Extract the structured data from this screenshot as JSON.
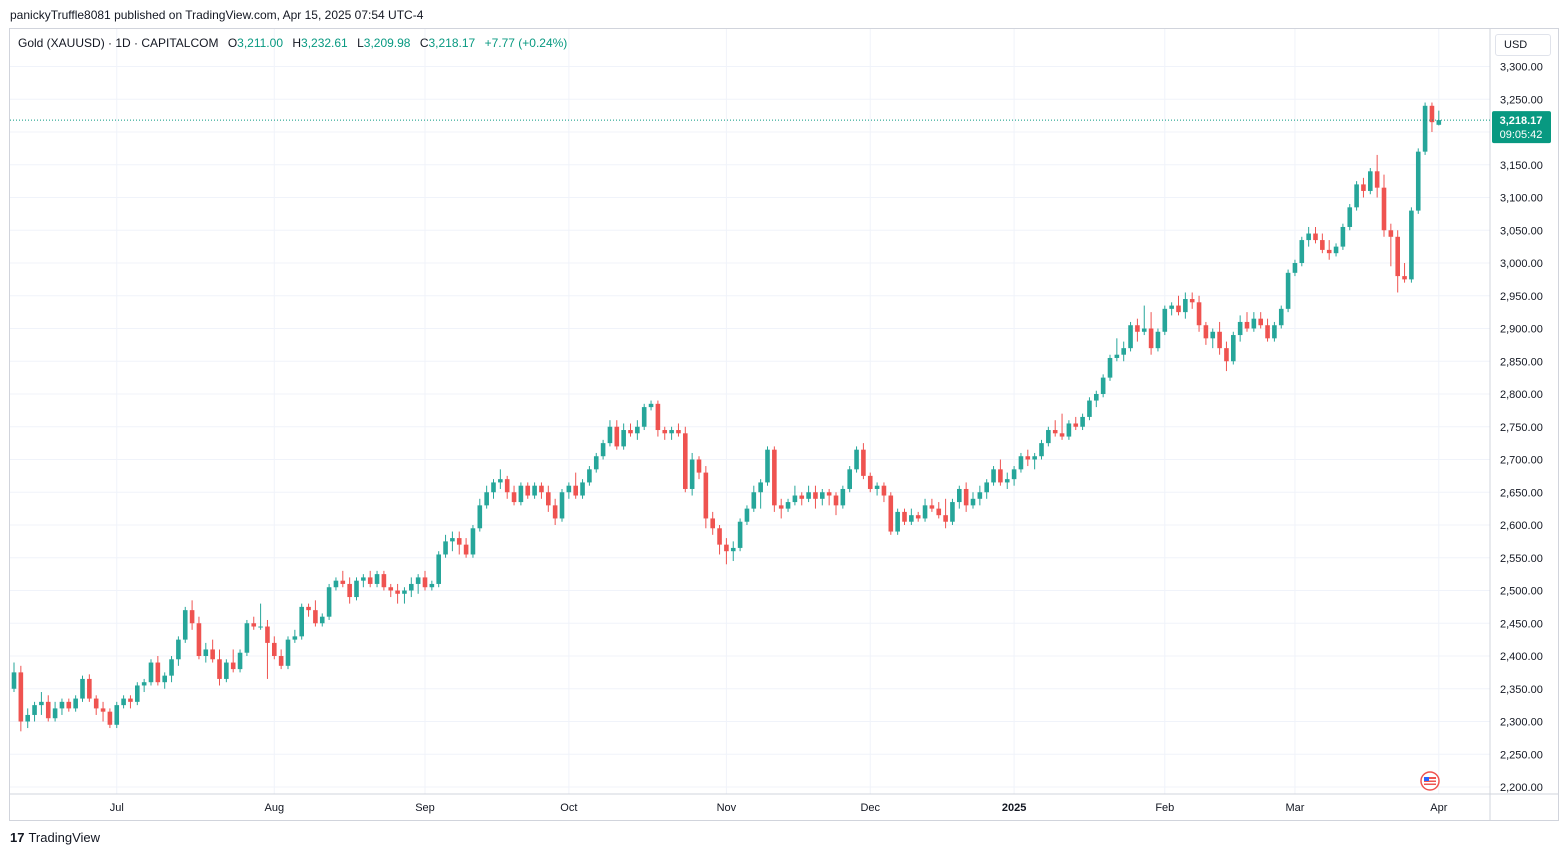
{
  "header": {
    "publisher_line": "panickyTruffle8081 published on TradingView.com, Apr 15, 2025 07:54 UTC-4"
  },
  "legend": {
    "symbol": "Gold (XAUUSD) · 1D · CAPITALCOM",
    "open_label": "O",
    "open_value": "3,211.00",
    "high_label": "H",
    "high_value": "3,232.61",
    "low_label": "L",
    "low_value": "3,209.98",
    "close_label": "C",
    "close_value": "3,218.17",
    "change": "+7.77 (+0.24%)"
  },
  "currency": "USD",
  "last_price": {
    "label": "3,218.17",
    "countdown": "09:05:42"
  },
  "footer": {
    "brand": "TradingView",
    "brand_mark": "17"
  },
  "colors": {
    "up": "#26a69a",
    "down": "#ef5350",
    "price_line": "#089981",
    "grid": "#f0f3fa",
    "axis_text": "#131722"
  },
  "chart_data": {
    "type": "candlestick",
    "title": "Gold (XAUUSD) · 1D · CAPITALCOM",
    "y_ticks": [
      "2,200.00",
      "2,250.00",
      "2,300.00",
      "2,350.00",
      "2,400.00",
      "2,450.00",
      "2,500.00",
      "2,550.00",
      "2,600.00",
      "2,650.00",
      "2,700.00",
      "2,750.00",
      "2,800.00",
      "2,850.00",
      "2,900.00",
      "2,950.00",
      "3,000.00",
      "3,050.00",
      "3,100.00",
      "3,150.00",
      "3,200.00",
      "3,250.00",
      "3,300.00"
    ],
    "ylim": [
      2190,
      3320
    ],
    "x_ticks": [
      {
        "label": "Jul",
        "bar": 15
      },
      {
        "label": "Aug",
        "bar": 38
      },
      {
        "label": "Sep",
        "bar": 60
      },
      {
        "label": "Oct",
        "bar": 81
      },
      {
        "label": "Nov",
        "bar": 104
      },
      {
        "label": "Dec",
        "bar": 125
      },
      {
        "label": "2025",
        "bar": 146,
        "bold": true
      },
      {
        "label": "Feb",
        "bar": 168
      },
      {
        "label": "Mar",
        "bar": 187
      },
      {
        "label": "Apr",
        "bar": 208
      }
    ],
    "candles": [
      [
        2350,
        2390,
        2345,
        2375
      ],
      [
        2375,
        2385,
        2285,
        2300
      ],
      [
        2300,
        2320,
        2290,
        2310
      ],
      [
        2310,
        2330,
        2300,
        2325
      ],
      [
        2325,
        2345,
        2310,
        2330
      ],
      [
        2330,
        2340,
        2300,
        2305
      ],
      [
        2305,
        2330,
        2300,
        2320
      ],
      [
        2320,
        2335,
        2310,
        2330
      ],
      [
        2330,
        2335,
        2315,
        2320
      ],
      [
        2320,
        2340,
        2315,
        2335
      ],
      [
        2335,
        2370,
        2330,
        2365
      ],
      [
        2365,
        2372,
        2330,
        2335
      ],
      [
        2335,
        2340,
        2310,
        2320
      ],
      [
        2320,
        2330,
        2300,
        2315
      ],
      [
        2315,
        2320,
        2290,
        2295
      ],
      [
        2295,
        2330,
        2290,
        2325
      ],
      [
        2325,
        2340,
        2320,
        2335
      ],
      [
        2335,
        2340,
        2320,
        2330
      ],
      [
        2330,
        2360,
        2325,
        2355
      ],
      [
        2355,
        2365,
        2345,
        2360
      ],
      [
        2360,
        2395,
        2355,
        2390
      ],
      [
        2390,
        2400,
        2355,
        2360
      ],
      [
        2360,
        2375,
        2350,
        2370
      ],
      [
        2370,
        2400,
        2360,
        2395
      ],
      [
        2395,
        2430,
        2385,
        2425
      ],
      [
        2425,
        2475,
        2420,
        2470
      ],
      [
        2470,
        2485,
        2440,
        2450
      ],
      [
        2450,
        2460,
        2395,
        2400
      ],
      [
        2400,
        2420,
        2390,
        2410
      ],
      [
        2410,
        2425,
        2390,
        2395
      ],
      [
        2395,
        2410,
        2355,
        2365
      ],
      [
        2365,
        2395,
        2360,
        2390
      ],
      [
        2390,
        2410,
        2375,
        2380
      ],
      [
        2380,
        2410,
        2375,
        2405
      ],
      [
        2405,
        2455,
        2400,
        2450
      ],
      [
        2450,
        2460,
        2440,
        2445
      ],
      [
        2445,
        2480,
        2440,
        2445
      ],
      [
        2445,
        2455,
        2365,
        2420
      ],
      [
        2420,
        2430,
        2395,
        2400
      ],
      [
        2400,
        2410,
        2380,
        2385
      ],
      [
        2385,
        2430,
        2380,
        2425
      ],
      [
        2425,
        2440,
        2420,
        2430
      ],
      [
        2430,
        2480,
        2425,
        2475
      ],
      [
        2475,
        2480,
        2460,
        2470
      ],
      [
        2470,
        2485,
        2445,
        2450
      ],
      [
        2450,
        2465,
        2445,
        2460
      ],
      [
        2460,
        2510,
        2455,
        2505
      ],
      [
        2505,
        2520,
        2500,
        2515
      ],
      [
        2515,
        2530,
        2505,
        2510
      ],
      [
        2510,
        2520,
        2480,
        2490
      ],
      [
        2490,
        2520,
        2485,
        2515
      ],
      [
        2515,
        2525,
        2505,
        2520
      ],
      [
        2520,
        2530,
        2505,
        2510
      ],
      [
        2510,
        2530,
        2505,
        2525
      ],
      [
        2525,
        2530,
        2500,
        2505
      ],
      [
        2505,
        2510,
        2490,
        2500
      ],
      [
        2500,
        2510,
        2480,
        2495
      ],
      [
        2495,
        2505,
        2480,
        2500
      ],
      [
        2500,
        2520,
        2490,
        2510
      ],
      [
        2510,
        2525,
        2495,
        2520
      ],
      [
        2520,
        2530,
        2500,
        2505
      ],
      [
        2505,
        2515,
        2500,
        2510
      ],
      [
        2510,
        2560,
        2505,
        2555
      ],
      [
        2555,
        2585,
        2550,
        2575
      ],
      [
        2575,
        2590,
        2560,
        2580
      ],
      [
        2580,
        2590,
        2555,
        2570
      ],
      [
        2570,
        2580,
        2550,
        2555
      ],
      [
        2555,
        2600,
        2550,
        2595
      ],
      [
        2595,
        2640,
        2590,
        2630
      ],
      [
        2630,
        2660,
        2625,
        2650
      ],
      [
        2650,
        2670,
        2640,
        2665
      ],
      [
        2665,
        2685,
        2655,
        2670
      ],
      [
        2670,
        2675,
        2640,
        2650
      ],
      [
        2650,
        2660,
        2630,
        2635
      ],
      [
        2635,
        2665,
        2630,
        2660
      ],
      [
        2660,
        2665,
        2640,
        2645
      ],
      [
        2645,
        2665,
        2640,
        2660
      ],
      [
        2660,
        2665,
        2640,
        2650
      ],
      [
        2650,
        2660,
        2620,
        2630
      ],
      [
        2630,
        2640,
        2600,
        2610
      ],
      [
        2610,
        2655,
        2605,
        2650
      ],
      [
        2650,
        2665,
        2640,
        2660
      ],
      [
        2660,
        2680,
        2640,
        2645
      ],
      [
        2645,
        2670,
        2640,
        2665
      ],
      [
        2665,
        2690,
        2660,
        2685
      ],
      [
        2685,
        2710,
        2680,
        2705
      ],
      [
        2705,
        2730,
        2700,
        2725
      ],
      [
        2725,
        2760,
        2720,
        2750
      ],
      [
        2750,
        2760,
        2715,
        2720
      ],
      [
        2720,
        2755,
        2715,
        2745
      ],
      [
        2745,
        2755,
        2735,
        2740
      ],
      [
        2740,
        2760,
        2730,
        2750
      ],
      [
        2750,
        2785,
        2745,
        2780
      ],
      [
        2780,
        2790,
        2775,
        2785
      ],
      [
        2785,
        2790,
        2735,
        2745
      ],
      [
        2745,
        2750,
        2730,
        2740
      ],
      [
        2740,
        2750,
        2730,
        2745
      ],
      [
        2745,
        2755,
        2735,
        2740
      ],
      [
        2740,
        2750,
        2650,
        2655
      ],
      [
        2655,
        2710,
        2645,
        2700
      ],
      [
        2700,
        2705,
        2670,
        2680
      ],
      [
        2680,
        2690,
        2595,
        2610
      ],
      [
        2610,
        2620,
        2585,
        2595
      ],
      [
        2595,
        2600,
        2555,
        2570
      ],
      [
        2570,
        2580,
        2540,
        2560
      ],
      [
        2560,
        2575,
        2545,
        2565
      ],
      [
        2565,
        2610,
        2560,
        2605
      ],
      [
        2605,
        2630,
        2600,
        2625
      ],
      [
        2625,
        2660,
        2620,
        2650
      ],
      [
        2650,
        2670,
        2625,
        2665
      ],
      [
        2665,
        2720,
        2660,
        2715
      ],
      [
        2715,
        2720,
        2620,
        2630
      ],
      [
        2630,
        2640,
        2610,
        2625
      ],
      [
        2625,
        2640,
        2620,
        2635
      ],
      [
        2635,
        2660,
        2630,
        2645
      ],
      [
        2645,
        2650,
        2630,
        2640
      ],
      [
        2640,
        2660,
        2635,
        2650
      ],
      [
        2650,
        2660,
        2625,
        2640
      ],
      [
        2640,
        2655,
        2630,
        2650
      ],
      [
        2650,
        2655,
        2630,
        2645
      ],
      [
        2645,
        2650,
        2615,
        2630
      ],
      [
        2630,
        2660,
        2625,
        2655
      ],
      [
        2655,
        2690,
        2650,
        2685
      ],
      [
        2685,
        2720,
        2680,
        2715
      ],
      [
        2715,
        2725,
        2670,
        2675
      ],
      [
        2675,
        2680,
        2650,
        2655
      ],
      [
        2655,
        2665,
        2645,
        2660
      ],
      [
        2660,
        2665,
        2635,
        2645
      ],
      [
        2645,
        2650,
        2585,
        2590
      ],
      [
        2590,
        2625,
        2585,
        2620
      ],
      [
        2620,
        2625,
        2600,
        2605
      ],
      [
        2605,
        2625,
        2600,
        2615
      ],
      [
        2615,
        2620,
        2605,
        2610
      ],
      [
        2610,
        2640,
        2605,
        2630
      ],
      [
        2630,
        2640,
        2620,
        2625
      ],
      [
        2625,
        2635,
        2610,
        2615
      ],
      [
        2615,
        2640,
        2595,
        2605
      ],
      [
        2605,
        2640,
        2600,
        2635
      ],
      [
        2635,
        2660,
        2625,
        2655
      ],
      [
        2655,
        2665,
        2620,
        2630
      ],
      [
        2630,
        2650,
        2625,
        2640
      ],
      [
        2640,
        2660,
        2630,
        2650
      ],
      [
        2650,
        2670,
        2640,
        2665
      ],
      [
        2665,
        2690,
        2660,
        2685
      ],
      [
        2685,
        2700,
        2660,
        2665
      ],
      [
        2665,
        2680,
        2655,
        2670
      ],
      [
        2670,
        2690,
        2660,
        2685
      ],
      [
        2685,
        2710,
        2680,
        2705
      ],
      [
        2705,
        2715,
        2690,
        2700
      ],
      [
        2700,
        2710,
        2685,
        2705
      ],
      [
        2705,
        2730,
        2700,
        2725
      ],
      [
        2725,
        2750,
        2720,
        2745
      ],
      [
        2745,
        2760,
        2735,
        2740
      ],
      [
        2740,
        2770,
        2730,
        2735
      ],
      [
        2735,
        2760,
        2730,
        2755
      ],
      [
        2755,
        2765,
        2745,
        2750
      ],
      [
        2750,
        2770,
        2745,
        2765
      ],
      [
        2765,
        2795,
        2760,
        2790
      ],
      [
        2790,
        2805,
        2780,
        2800
      ],
      [
        2800,
        2830,
        2795,
        2825
      ],
      [
        2825,
        2860,
        2820,
        2855
      ],
      [
        2855,
        2885,
        2850,
        2860
      ],
      [
        2860,
        2880,
        2850,
        2870
      ],
      [
        2870,
        2910,
        2865,
        2905
      ],
      [
        2905,
        2915,
        2880,
        2895
      ],
      [
        2895,
        2935,
        2890,
        2900
      ],
      [
        2900,
        2925,
        2860,
        2870
      ],
      [
        2870,
        2900,
        2865,
        2895
      ],
      [
        2895,
        2935,
        2890,
        2930
      ],
      [
        2930,
        2940,
        2920,
        2935
      ],
      [
        2935,
        2950,
        2920,
        2925
      ],
      [
        2925,
        2955,
        2915,
        2945
      ],
      [
        2945,
        2955,
        2930,
        2940
      ],
      [
        2940,
        2950,
        2895,
        2905
      ],
      [
        2905,
        2910,
        2875,
        2885
      ],
      [
        2885,
        2900,
        2870,
        2895
      ],
      [
        2895,
        2910,
        2860,
        2870
      ],
      [
        2870,
        2880,
        2835,
        2850
      ],
      [
        2850,
        2895,
        2845,
        2890
      ],
      [
        2890,
        2920,
        2880,
        2910
      ],
      [
        2910,
        2925,
        2895,
        2900
      ],
      [
        2900,
        2925,
        2895,
        2915
      ],
      [
        2915,
        2925,
        2900,
        2905
      ],
      [
        2905,
        2915,
        2880,
        2885
      ],
      [
        2885,
        2910,
        2880,
        2905
      ],
      [
        2905,
        2935,
        2900,
        2930
      ],
      [
        2930,
        2990,
        2925,
        2985
      ],
      [
        2985,
        3005,
        2980,
        3000
      ],
      [
        3000,
        3040,
        2995,
        3035
      ],
      [
        3035,
        3055,
        3025,
        3045
      ],
      [
        3045,
        3055,
        3030,
        3035
      ],
      [
        3035,
        3045,
        3015,
        3020
      ],
      [
        3020,
        3035,
        3005,
        3015
      ],
      [
        3015,
        3030,
        3010,
        3025
      ],
      [
        3025,
        3060,
        3020,
        3055
      ],
      [
        3055,
        3090,
        3050,
        3085
      ],
      [
        3085,
        3125,
        3080,
        3120
      ],
      [
        3120,
        3130,
        3100,
        3110
      ],
      [
        3110,
        3145,
        3105,
        3140
      ],
      [
        3140,
        3165,
        3100,
        3115
      ],
      [
        3115,
        3135,
        3040,
        3050
      ],
      [
        3050,
        3060,
        2995,
        3040
      ],
      [
        3040,
        3050,
        2955,
        2980
      ],
      [
        2980,
        3000,
        2970,
        2975
      ],
      [
        2975,
        3085,
        2970,
        3080
      ],
      [
        3080,
        3175,
        3075,
        3170
      ],
      [
        3170,
        3245,
        3165,
        3240
      ],
      [
        3240,
        3245,
        3200,
        3215
      ],
      [
        3211,
        3232.61,
        3209.98,
        3218.17
      ]
    ]
  }
}
